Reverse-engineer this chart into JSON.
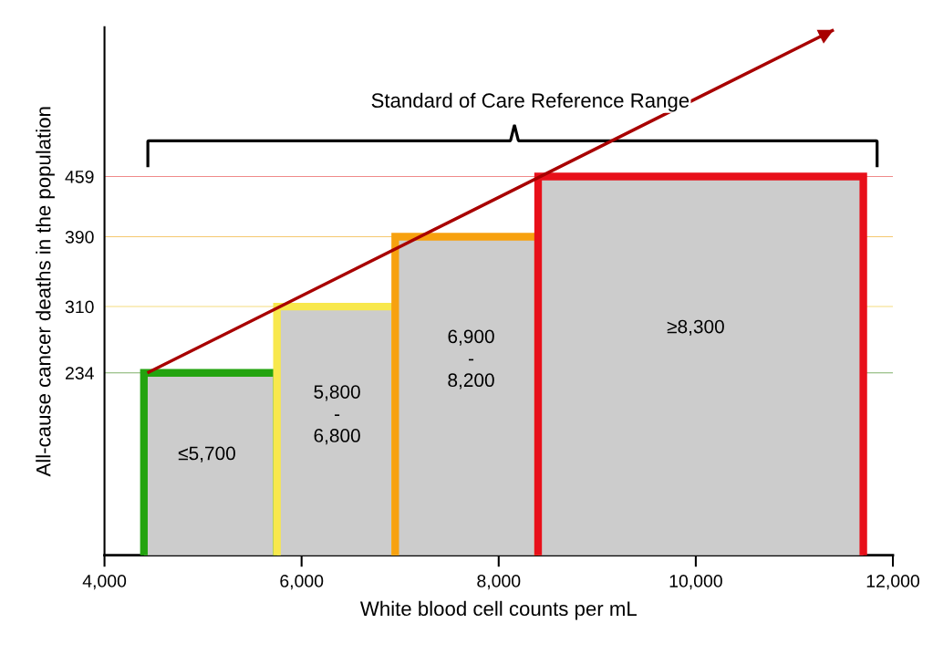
{
  "chart_data": {
    "type": "histogram",
    "xlabel": "White blood cell counts per mL",
    "ylabel": "All-cause cancer deaths in the population",
    "bins": [
      4400,
      5750,
      6950,
      8400,
      11700
    ],
    "values": [
      234,
      310,
      390,
      459
    ],
    "colors": [
      "#23a30f",
      "#f8e84c",
      "#f7a10f",
      "#e8101a"
    ],
    "xlim": [
      4000,
      12000
    ],
    "xticks": [
      {
        "value": 4000,
        "label": "4,000"
      },
      {
        "value": 6000,
        "label": "6,000"
      },
      {
        "value": 8000,
        "label": "8,000"
      },
      {
        "value": 10000,
        "label": "10,000"
      },
      {
        "value": 12000,
        "label": "12,000"
      }
    ],
    "ylim": [
      25,
      630
    ],
    "series": [
      {
        "type": "line",
        "color": "#a80000",
        "x": [
          4435,
          11400
        ],
        "values": [
          234,
          627
        ]
      }
    ],
    "yticks": [
      234,
      310,
      390,
      459
    ],
    "ref_lines": [
      {
        "axis": "y",
        "value": 234,
        "color": "#7fb06a"
      },
      {
        "axis": "y",
        "value": 310,
        "color": "#f5dc80"
      },
      {
        "axis": "y",
        "value": 390,
        "color": "#f5c870"
      },
      {
        "axis": "y",
        "value": 459,
        "color": "#f08a8a"
      }
    ],
    "annotations": [
      "Standard of Care Reference Range",
      "≤5,700",
      "5,800\n-\n6,800",
      "6,900\n-\n8,200",
      "≥8,300"
    ],
    "grid": false,
    "legend": false
  }
}
